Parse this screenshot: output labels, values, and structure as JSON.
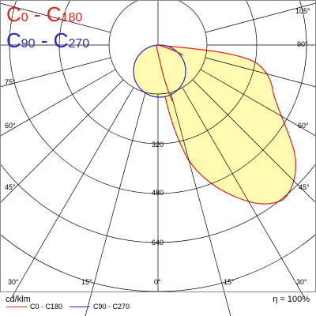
{
  "titles": {
    "c0_main": "C",
    "c0_start": "0",
    "c0_dash": " - C",
    "c0_end": "180",
    "c90_main": "C",
    "c90_start": "90",
    "c90_dash": " - C",
    "c90_end": "270"
  },
  "angle_labels": [
    "105°",
    "90°",
    "75°",
    "60°",
    "45°",
    "30°",
    "15°",
    "0°",
    "15°",
    "30°",
    "45°",
    "60°",
    "75°",
    "90°",
    "105°"
  ],
  "radial_labels": [
    "320",
    "480",
    "640"
  ],
  "footer": {
    "unit": "cd/klm",
    "efficiency": "η = 100%"
  },
  "legend": {
    "c0": "C0 - C180",
    "c90": "C90 - C270"
  },
  "colors": {
    "c0": "#e8201b",
    "c90": "#2a2ab8",
    "fill": "#fffbb0",
    "grid": "#000000"
  }
}
